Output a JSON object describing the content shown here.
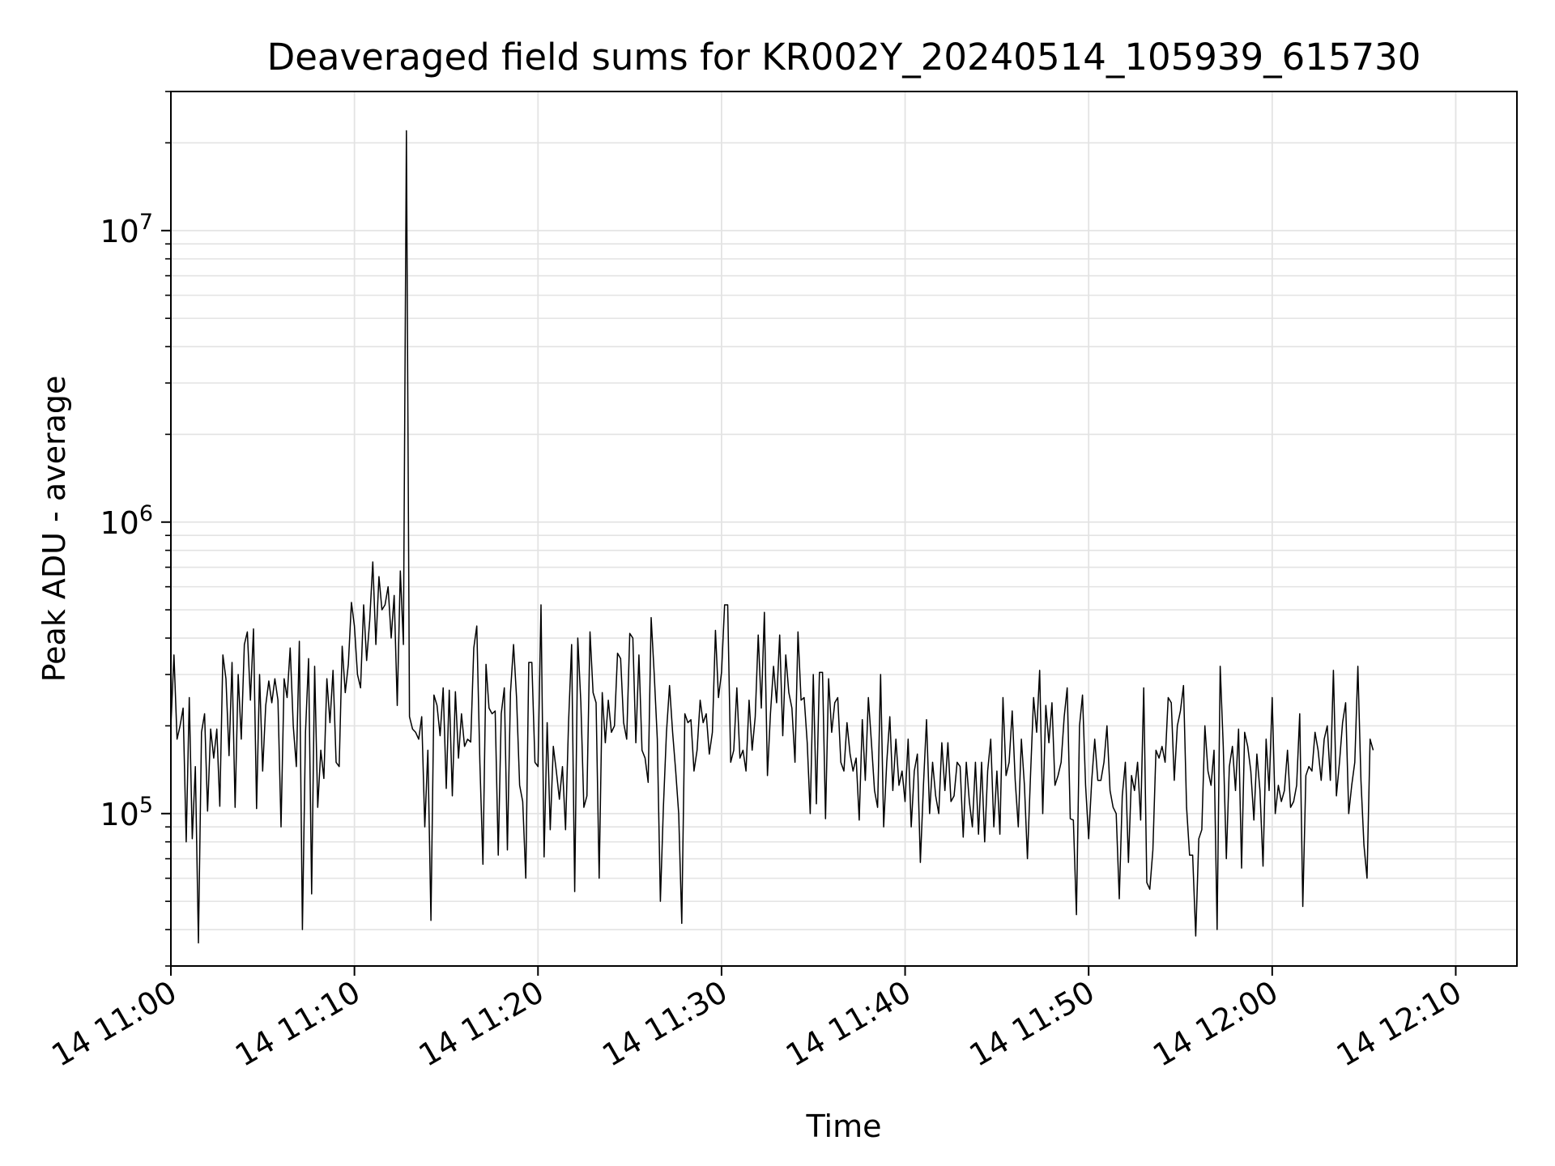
{
  "chart_data": {
    "type": "line",
    "title": "Deaveraged field sums for KR002Y_20240514_105939_615730",
    "xlabel": "Time",
    "ylabel": "Peak ADU - average",
    "yscale": "log",
    "ylim": [
      30000,
      30000000
    ],
    "xlim": [
      "2024-05-14 11:00:00",
      "2024-05-14 12:13:20"
    ],
    "grid": true,
    "line_color": "#000000",
    "grid_color": "#e3e3e3",
    "x_ticks": [
      {
        "t": "2024-05-14 11:00:00",
        "label": "14 11:00"
      },
      {
        "t": "2024-05-14 11:10:00",
        "label": "14 11:10"
      },
      {
        "t": "2024-05-14 11:20:00",
        "label": "14 11:20"
      },
      {
        "t": "2024-05-14 11:30:00",
        "label": "14 11:30"
      },
      {
        "t": "2024-05-14 11:40:00",
        "label": "14 11:40"
      },
      {
        "t": "2024-05-14 11:50:00",
        "label": "14 11:50"
      },
      {
        "t": "2024-05-14 12:00:00",
        "label": "14 12:00"
      },
      {
        "t": "2024-05-14 12:10:00",
        "label": "14 12:10"
      }
    ],
    "y_ticks": [
      {
        "value": 100000,
        "base": "10",
        "exp": "5"
      },
      {
        "value": 1000000,
        "base": "10",
        "exp": "6"
      },
      {
        "value": 10000000,
        "base": "10",
        "exp": "7"
      }
    ],
    "series": [
      {
        "x_start": "2024-05-14 11:00:00",
        "x_step_seconds": 10,
        "values": [
          200000,
          350000,
          180000,
          200000,
          230000,
          80000,
          250000,
          82000,
          145000,
          36000,
          190000,
          220000,
          102000,
          195000,
          155000,
          195000,
          106000,
          350000,
          290000,
          158000,
          330000,
          105000,
          300000,
          180000,
          380000,
          420000,
          245000,
          430000,
          104000,
          300000,
          140000,
          235000,
          285000,
          240000,
          290000,
          245000,
          90000,
          290000,
          250000,
          370000,
          200000,
          145000,
          390000,
          40000,
          190000,
          340000,
          53000,
          320000,
          105000,
          165000,
          132000,
          290000,
          205000,
          310000,
          150000,
          145000,
          375000,
          260000,
          325000,
          530000,
          440000,
          300000,
          270000,
          520000,
          335000,
          460000,
          730000,
          380000,
          650000,
          500000,
          520000,
          600000,
          400000,
          560000,
          235000,
          680000,
          380000,
          22000000,
          215000,
          195000,
          190000,
          180000,
          215000,
          90000,
          165000,
          43000,
          255000,
          235000,
          185000,
          270000,
          122000,
          265000,
          115000,
          262000,
          155000,
          220000,
          170000,
          180000,
          176000,
          370000,
          440000,
          150000,
          67000,
          325000,
          230000,
          220000,
          225000,
          72000,
          220000,
          270000,
          75000,
          260000,
          380000,
          250000,
          125000,
          110000,
          60000,
          330000,
          330000,
          150000,
          145000,
          520000,
          71000,
          205000,
          88000,
          170000,
          140000,
          112000,
          145000,
          88000,
          205000,
          380000,
          54000,
          400000,
          240000,
          105000,
          115000,
          420000,
          260000,
          240000,
          60000,
          260000,
          175000,
          245000,
          190000,
          200000,
          355000,
          340000,
          205000,
          180000,
          415000,
          400000,
          175000,
          350000,
          165000,
          155000,
          128000,
          470000,
          300000,
          180000,
          50000,
          105000,
          190000,
          275000,
          190000,
          140000,
          100000,
          42000,
          220000,
          205000,
          210000,
          140000,
          165000,
          245000,
          205000,
          220000,
          160000,
          190000,
          425000,
          250000,
          305000,
          520000,
          520000,
          150000,
          165000,
          270000,
          155000,
          165000,
          140000,
          245000,
          165000,
          215000,
          410000,
          230000,
          490000,
          135000,
          220000,
          320000,
          240000,
          410000,
          185000,
          350000,
          260000,
          230000,
          150000,
          420000,
          245000,
          250000,
          175000,
          100000,
          300000,
          108000,
          305000,
          305000,
          96000,
          290000,
          190000,
          240000,
          250000,
          150000,
          140000,
          205000,
          160000,
          140000,
          155000,
          95000,
          210000,
          130000,
          250000,
          175000,
          120000,
          105000,
          300000,
          90000,
          150000,
          215000,
          120000,
          180000,
          125000,
          140000,
          110000,
          180000,
          90000,
          140000,
          160000,
          68000,
          125000,
          210000,
          100000,
          150000,
          115000,
          100000,
          175000,
          120000,
          175000,
          110000,
          115000,
          150000,
          145000,
          83000,
          150000,
          110000,
          90000,
          150000,
          85000,
          150000,
          80000,
          140000,
          180000,
          90000,
          140000,
          85000,
          250000,
          135000,
          150000,
          225000,
          130000,
          90000,
          180000,
          125000,
          70000,
          135000,
          250000,
          190000,
          310000,
          100000,
          235000,
          175000,
          240000,
          125000,
          135000,
          150000,
          215000,
          270000,
          96000,
          95000,
          45000,
          200000,
          255000,
          125000,
          82000,
          130000,
          180000,
          130000,
          130000,
          150000,
          200000,
          120000,
          105000,
          100000,
          51000,
          115000,
          150000,
          68000,
          135000,
          120000,
          150000,
          95000,
          270000,
          58000,
          55000,
          75000,
          165000,
          155000,
          170000,
          150000,
          250000,
          240000,
          130000,
          200000,
          225000,
          275000,
          105000,
          72000,
          72000,
          38000,
          82000,
          88000,
          200000,
          140000,
          125000,
          165000,
          40000,
          320000,
          170000,
          70000,
          145000,
          170000,
          120000,
          195000,
          65000,
          190000,
          170000,
          140000,
          95000,
          160000,
          120000,
          66000,
          180000,
          120000,
          250000,
          100000,
          125000,
          110000,
          120000,
          165000,
          105000,
          110000,
          125000,
          220000,
          48000,
          135000,
          145000,
          140000,
          190000,
          165000,
          130000,
          180000,
          200000,
          130000,
          310000,
          115000,
          150000,
          205000,
          240000,
          100000,
          125000,
          150000,
          320000,
          130000,
          78000,
          60000,
          180000,
          165000
        ]
      }
    ]
  }
}
